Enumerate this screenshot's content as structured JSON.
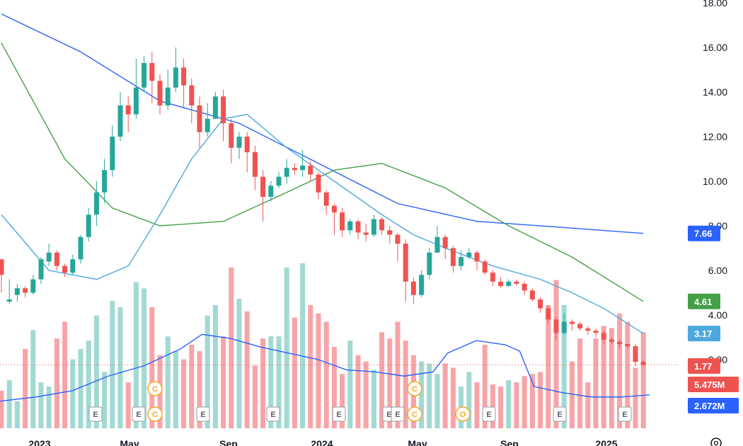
{
  "chart_data": {
    "type": "candlestick",
    "y_axis": {
      "range": [
        1,
        18
      ],
      "ticks": [
        "18.00",
        "16.00",
        "14.00",
        "12.00",
        "10.00",
        "8.00",
        "6.00",
        "4.00",
        "2.00"
      ]
    },
    "x_axis": {
      "ticks": [
        "2023",
        "May",
        "Sep",
        "2024",
        "May",
        "Sep",
        "2025"
      ]
    },
    "candles": [
      [
        6.5,
        5.8,
        5.0,
        6.4,
        5.6
      ],
      [
        4.6,
        4.7,
        4.5,
        5.6,
        3.8
      ],
      [
        4.9,
        5.2,
        4.6,
        5.4,
        3.9
      ],
      [
        5.2,
        5.0,
        4.8,
        5.3,
        4.3
      ],
      [
        5.0,
        5.6,
        4.9,
        5.8,
        4.6
      ],
      [
        5.6,
        6.5,
        5.4,
        6.6,
        5.0
      ],
      [
        6.4,
        6.8,
        6.2,
        7.2,
        6.0
      ],
      [
        6.8,
        6.2,
        6.0,
        6.9,
        5.8
      ],
      [
        6.2,
        5.9,
        5.7,
        6.3,
        5.6
      ],
      [
        5.9,
        6.5,
        5.8,
        6.7,
        5.9
      ],
      [
        6.5,
        7.5,
        6.3,
        7.6,
        6.3
      ],
      [
        7.5,
        8.5,
        7.3,
        8.8,
        7.4
      ],
      [
        8.5,
        9.5,
        8.0,
        10.0,
        8.3
      ],
      [
        9.5,
        10.5,
        9.0,
        11.0,
        9.1
      ],
      [
        10.5,
        12.0,
        10.2,
        12.5,
        10.6
      ],
      [
        12.0,
        13.4,
        11.8,
        14.0,
        12.2
      ],
      [
        13.4,
        13.0,
        12.2,
        13.8,
        12.9
      ],
      [
        13.0,
        14.2,
        12.8,
        15.5,
        13.0
      ],
      [
        14.2,
        15.3,
        14.0,
        15.6,
        14.2
      ],
      [
        15.3,
        14.5,
        13.5,
        15.8,
        14.2
      ],
      [
        14.5,
        13.4,
        13.0,
        14.8,
        12.9
      ],
      [
        13.4,
        14.2,
        13.2,
        15.0,
        13.3
      ],
      [
        14.2,
        15.1,
        14.0,
        16.0,
        14.1
      ],
      [
        15.1,
        14.3,
        13.3,
        15.5,
        13.7
      ],
      [
        14.3,
        13.4,
        12.6,
        14.6,
        12.4
      ],
      [
        13.4,
        12.2,
        11.5,
        13.8,
        11.3
      ],
      [
        12.2,
        12.8,
        12.0,
        13.5,
        12.0
      ],
      [
        12.8,
        13.8,
        12.8,
        14.0,
        12.6
      ],
      [
        13.8,
        12.6,
        11.8,
        14.1,
        11.8
      ],
      [
        12.6,
        11.5,
        10.8,
        12.8,
        11.0
      ],
      [
        11.5,
        12.0,
        11.0,
        12.2,
        10.9
      ],
      [
        12.0,
        11.3,
        10.4,
        12.2,
        10.4
      ],
      [
        11.3,
        10.2,
        9.6,
        11.6,
        9.4
      ],
      [
        10.2,
        9.3,
        8.2,
        10.5,
        9.0
      ],
      [
        9.3,
        9.8,
        9.1,
        10.0,
        9.3
      ],
      [
        9.8,
        10.2,
        9.7,
        10.4,
        9.8
      ],
      [
        10.2,
        10.6,
        9.9,
        11.0,
        10.1
      ],
      [
        10.6,
        10.5,
        10.3,
        10.8,
        10.4
      ],
      [
        10.5,
        10.7,
        10.2,
        11.4,
        10.4
      ],
      [
        10.7,
        10.3,
        10.0,
        10.9,
        10.1
      ],
      [
        10.3,
        9.5,
        9.2,
        10.4,
        9.2
      ],
      [
        9.5,
        8.9,
        8.5,
        9.6,
        8.5
      ],
      [
        8.9,
        8.6,
        7.6,
        9.0,
        8.2
      ],
      [
        8.6,
        7.8,
        7.5,
        8.8,
        7.5
      ],
      [
        7.8,
        8.2,
        7.6,
        8.3,
        7.8
      ],
      [
        8.2,
        7.7,
        7.4,
        8.3,
        7.4
      ],
      [
        7.7,
        7.6,
        7.3,
        8.1,
        7.4
      ],
      [
        7.6,
        8.3,
        7.5,
        8.5,
        7.9
      ],
      [
        8.3,
        7.8,
        7.6,
        8.4,
        7.7
      ],
      [
        7.8,
        7.6,
        7.2,
        8.0,
        7.5
      ],
      [
        7.6,
        7.2,
        6.4,
        7.7,
        6.8
      ],
      [
        7.2,
        5.5,
        4.6,
        7.4,
        5.0
      ],
      [
        5.5,
        4.9,
        4.5,
        5.7,
        4.5
      ],
      [
        4.9,
        5.8,
        4.8,
        6.0,
        5.2
      ],
      [
        5.8,
        6.8,
        5.6,
        7.0,
        6.0
      ],
      [
        6.8,
        7.5,
        6.8,
        8.0,
        7.2
      ],
      [
        7.5,
        7.0,
        6.5,
        7.6,
        6.6
      ],
      [
        7.0,
        6.2,
        5.9,
        7.1,
        5.9
      ],
      [
        6.2,
        6.6,
        6.0,
        6.9,
        6.1
      ],
      [
        6.6,
        6.8,
        6.5,
        7.0,
        6.5
      ],
      [
        6.8,
        6.4,
        6.0,
        6.9,
        6.1
      ],
      [
        6.4,
        5.9,
        5.8,
        6.5,
        5.6
      ],
      [
        5.9,
        5.5,
        5.3,
        6.0,
        5.0
      ],
      [
        5.5,
        5.3,
        5.2,
        5.7,
        5.1
      ],
      [
        5.3,
        5.5,
        5.3,
        5.6,
        5.3
      ],
      [
        5.5,
        5.4,
        5.3,
        5.6,
        5.3
      ],
      [
        5.4,
        5.1,
        4.9,
        5.5,
        4.8
      ],
      [
        5.1,
        4.7,
        4.6,
        5.2,
        4.5
      ],
      [
        4.7,
        4.3,
        4.1,
        4.8,
        4.0
      ],
      [
        4.3,
        3.8,
        3.6,
        4.4,
        3.6
      ],
      [
        3.8,
        3.2,
        2.9,
        3.9,
        3.0
      ],
      [
        3.2,
        3.7,
        3.1,
        4.1,
        3.7
      ],
      [
        3.7,
        3.6,
        3.3,
        3.8,
        3.5
      ],
      [
        3.6,
        3.4,
        3.3,
        3.7,
        3.3
      ],
      [
        3.4,
        3.3,
        3.1,
        3.5,
        3.0
      ],
      [
        3.3,
        3.2,
        3.0,
        3.4,
        3.0
      ],
      [
        3.2,
        2.9,
        2.7,
        3.3,
        2.6
      ],
      [
        2.9,
        2.8,
        2.7,
        3.0,
        2.6
      ],
      [
        2.8,
        2.7,
        2.5,
        2.9,
        2.5
      ],
      [
        2.7,
        2.6,
        2.5,
        2.7,
        2.5
      ],
      [
        2.6,
        1.9,
        1.7,
        2.7,
        1.8
      ],
      [
        1.9,
        1.77,
        1.7,
        2.0,
        1.8
      ]
    ],
    "moving_averages": [
      {
        "color": "#2962ff",
        "label": "7.66",
        "points": [
          [
            0,
            17.5
          ],
          [
            10,
            15.8
          ],
          [
            20,
            13.6
          ],
          [
            30,
            12.6
          ],
          [
            40,
            10.8
          ],
          [
            50,
            9.0
          ],
          [
            60,
            8.2
          ],
          [
            70,
            7.95
          ],
          [
            81,
            7.66
          ]
        ]
      },
      {
        "color": "#43a047",
        "label": "4.61",
        "points": [
          [
            0,
            16.2
          ],
          [
            8,
            11.0
          ],
          [
            14,
            8.8
          ],
          [
            20,
            8.0
          ],
          [
            28,
            8.2
          ],
          [
            36,
            9.5
          ],
          [
            42,
            10.5
          ],
          [
            48,
            10.8
          ],
          [
            56,
            9.7
          ],
          [
            64,
            8.0
          ],
          [
            72,
            6.6
          ],
          [
            81,
            4.61
          ]
        ]
      },
      {
        "color": "#4ea8de",
        "label": "3.17",
        "points": [
          [
            0,
            8.5
          ],
          [
            6,
            6.0
          ],
          [
            12,
            5.6
          ],
          [
            16,
            6.2
          ],
          [
            20,
            8.5
          ],
          [
            24,
            11.0
          ],
          [
            28,
            12.8
          ],
          [
            31,
            13.0
          ],
          [
            36,
            11.5
          ],
          [
            42,
            10.0
          ],
          [
            48,
            8.5
          ],
          [
            52,
            7.6
          ],
          [
            56,
            7.0
          ],
          [
            62,
            6.2
          ],
          [
            68,
            5.6
          ],
          [
            72,
            5.0
          ],
          [
            76,
            4.3
          ],
          [
            81,
            3.17
          ]
        ]
      }
    ],
    "volume": {
      "label": "5.475M",
      "ma_label": "2.672M",
      "values": [
        1.8,
        2.3,
        1.3,
        3.8,
        4.7,
        2.2,
        2.0,
        4.3,
        5.1,
        3.3,
        3.8,
        4.2,
        5.4,
        2.7,
        6.1,
        5.8,
        2.2,
        7.0,
        6.7,
        5.8,
        3.5,
        4.4,
        3.7,
        3.3,
        4.0,
        3.7,
        5.4,
        5.9,
        4.4,
        7.7,
        6.2,
        5.6,
        3.0,
        4.3,
        4.4,
        4.4,
        7.7,
        5.3,
        7.9,
        5.9,
        5.5,
        5.1,
        3.9,
        2.6,
        4.2,
        3.5,
        3.2,
        2.8,
        4.6,
        4.3,
        5.1,
        4.2,
        3.5,
        3.2,
        3.1,
        2.6,
        3.1,
        2.9,
        2.0,
        2.7,
        2.2,
        4.0,
        2.1,
        2.0,
        2.3,
        2.2,
        2.5,
        2.6,
        2.7,
        5.9,
        7.1,
        5.9,
        3.2,
        4.3,
        2.2,
        4.3,
        4.9,
        4.8,
        5.5,
        5.1,
        2.9,
        4.6
      ],
      "ma": [
        [
          0,
          1.3
        ],
        [
          5,
          1.5
        ],
        [
          10,
          1.8
        ],
        [
          15,
          2.5
        ],
        [
          20,
          3.0
        ],
        [
          25,
          3.8
        ],
        [
          28,
          4.5
        ],
        [
          32,
          4.3
        ],
        [
          36,
          3.9
        ],
        [
          40,
          3.6
        ],
        [
          44,
          3.3
        ],
        [
          48,
          2.8
        ],
        [
          52,
          2.7
        ],
        [
          56,
          2.5
        ],
        [
          60,
          2.7
        ],
        [
          62,
          3.6
        ],
        [
          66,
          4.2
        ],
        [
          70,
          4.0
        ],
        [
          72,
          3.7
        ],
        [
          74,
          2.0
        ],
        [
          78,
          1.7
        ],
        [
          82,
          1.5
        ],
        [
          86,
          1.5
        ],
        [
          90,
          1.6
        ]
      ]
    },
    "price_label": "1.77",
    "events": [
      {
        "text": "E",
        "row": "bottom"
      },
      {
        "text": "E",
        "row": "bottom"
      },
      {
        "text": "C",
        "row": "bottom"
      },
      {
        "text": "C",
        "row": "top"
      },
      {
        "text": "E",
        "row": "bottom"
      },
      {
        "text": "E",
        "row": "bottom"
      },
      {
        "text": "E",
        "row": "bottom"
      },
      {
        "text": "E",
        "row": "bottom"
      },
      {
        "text": "E",
        "row": "bottom"
      },
      {
        "text": "C",
        "row": "bottom"
      },
      {
        "text": "C",
        "row": "top"
      },
      {
        "text": "O",
        "row": "bottom"
      },
      {
        "text": "E",
        "row": "bottom"
      },
      {
        "text": "E",
        "row": "bottom"
      },
      {
        "text": "E",
        "row": "bottom"
      }
    ],
    "colors": {
      "up": "#26a69a",
      "down": "#ef5350",
      "up_vol": "#a2d9d3",
      "down_vol": "#f7a4a8",
      "vol_ma": "#2962ff",
      "price_line": "#ef5350"
    }
  }
}
